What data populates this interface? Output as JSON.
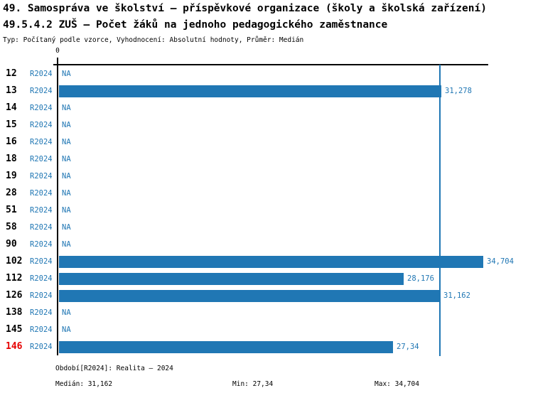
{
  "header": {
    "title_line1": "49. Samospráva ve školství – příspěvkové organizace (školy a školská zařízení)",
    "title_line2": "49.5.4.2 ZUŠ – Počet žáků na jednoho pedagogického zaměstnance",
    "subtitle": "Typ: Počítaný podle vzorce, Vyhodnocení: Absolutní hodnoty, Průměr: Medián"
  },
  "chart_data": {
    "type": "bar",
    "orientation": "horizontal",
    "title": "49.5.4.2 ZUŠ – Počet žáků na jednoho pedagogického zaměstnance",
    "x_axis": {
      "zero_label": "0",
      "min": 0,
      "max": 34.704,
      "gridlines": false
    },
    "series_name": "R2024",
    "categories": [
      "12",
      "13",
      "14",
      "15",
      "16",
      "18",
      "19",
      "28",
      "51",
      "58",
      "90",
      "102",
      "112",
      "126",
      "138",
      "145",
      "146"
    ],
    "values": [
      null,
      31.278,
      null,
      null,
      null,
      null,
      null,
      null,
      null,
      null,
      null,
      34.704,
      28.176,
      31.162,
      null,
      null,
      27.34
    ],
    "value_labels": [
      "NA",
      "31,278",
      "NA",
      "NA",
      "NA",
      "NA",
      "NA",
      "NA",
      "NA",
      "NA",
      "NA",
      "34,704",
      "28,176",
      "31,162",
      "NA",
      "NA",
      "27,34"
    ],
    "highlight_category": "146",
    "median_line_value": 31.162,
    "colors": {
      "bar": "#2077b4",
      "label_blue": "#2077b4",
      "median_line": "#2077b4",
      "highlight_red": "#e60000",
      "axis": "#000000"
    }
  },
  "footer": {
    "period": "Období[R2024]: Realita – 2024",
    "median": "Medián: 31,162",
    "min": "Min: 27,34",
    "max": "Max: 34,704"
  }
}
